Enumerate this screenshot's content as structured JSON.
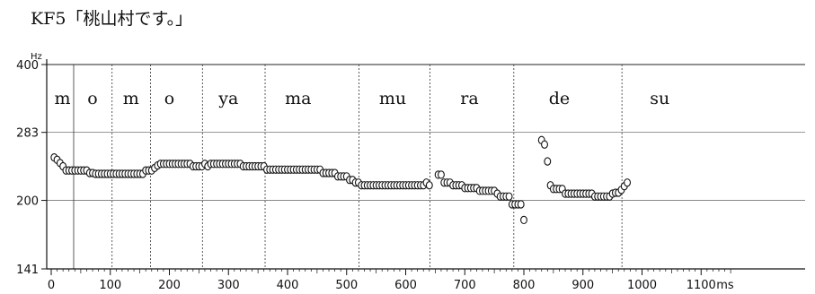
{
  "title": "KF5「桃山村です。」",
  "chart_data": {
    "type": "scatter",
    "title": "KF5「桃山村です。」",
    "x_unit": "ms",
    "y_unit": "Hz",
    "xlim": [
      0,
      1150
    ],
    "ylim": [
      141,
      400
    ],
    "y_scale": "log",
    "x_ticks": [
      0,
      100,
      200,
      300,
      400,
      500,
      600,
      700,
      800,
      900,
      1000,
      1100
    ],
    "y_ticks": [
      141,
      200,
      283,
      400
    ],
    "grid": "horizontal at y ticks",
    "segment_boundaries": [
      38,
      103,
      168,
      256,
      362,
      521,
      641,
      783,
      966
    ],
    "segments": [
      {
        "label": "m",
        "x": 19
      },
      {
        "label": "o",
        "x": 70
      },
      {
        "label": "m",
        "x": 135
      },
      {
        "label": "o",
        "x": 200
      },
      {
        "label": "ya",
        "x": 300
      },
      {
        "label": "ma",
        "x": 418
      },
      {
        "label": "mu",
        "x": 578
      },
      {
        "label": "ra",
        "x": 708
      },
      {
        "label": "de",
        "x": 860
      },
      {
        "label": "su",
        "x": 1030
      }
    ],
    "points": [
      [
        5,
        249
      ],
      [
        10,
        246
      ],
      [
        15,
        242
      ],
      [
        20,
        238
      ],
      [
        25,
        233
      ],
      [
        30,
        233
      ],
      [
        35,
        233
      ],
      [
        40,
        233
      ],
      [
        45,
        233
      ],
      [
        50,
        233
      ],
      [
        55,
        233
      ],
      [
        60,
        233
      ],
      [
        65,
        230
      ],
      [
        70,
        230
      ],
      [
        75,
        229
      ],
      [
        80,
        229
      ],
      [
        85,
        229
      ],
      [
        90,
        229
      ],
      [
        95,
        229
      ],
      [
        100,
        229
      ],
      [
        105,
        229
      ],
      [
        110,
        229
      ],
      [
        115,
        229
      ],
      [
        120,
        229
      ],
      [
        125,
        229
      ],
      [
        130,
        229
      ],
      [
        135,
        229
      ],
      [
        140,
        229
      ],
      [
        145,
        229
      ],
      [
        150,
        229
      ],
      [
        155,
        229
      ],
      [
        160,
        233
      ],
      [
        165,
        233
      ],
      [
        170,
        233
      ],
      [
        175,
        236
      ],
      [
        180,
        239
      ],
      [
        185,
        241
      ],
      [
        190,
        241
      ],
      [
        195,
        241
      ],
      [
        200,
        241
      ],
      [
        205,
        241
      ],
      [
        210,
        241
      ],
      [
        215,
        241
      ],
      [
        220,
        241
      ],
      [
        225,
        241
      ],
      [
        230,
        241
      ],
      [
        235,
        241
      ],
      [
        240,
        238
      ],
      [
        245,
        238
      ],
      [
        250,
        238
      ],
      [
        255,
        238
      ],
      [
        260,
        241
      ],
      [
        265,
        238
      ],
      [
        270,
        241
      ],
      [
        275,
        241
      ],
      [
        280,
        241
      ],
      [
        285,
        241
      ],
      [
        290,
        241
      ],
      [
        295,
        241
      ],
      [
        300,
        241
      ],
      [
        305,
        241
      ],
      [
        310,
        241
      ],
      [
        315,
        241
      ],
      [
        320,
        241
      ],
      [
        325,
        238
      ],
      [
        330,
        238
      ],
      [
        335,
        238
      ],
      [
        340,
        238
      ],
      [
        345,
        238
      ],
      [
        350,
        238
      ],
      [
        355,
        238
      ],
      [
        360,
        238
      ],
      [
        365,
        234
      ],
      [
        370,
        234
      ],
      [
        375,
        234
      ],
      [
        380,
        234
      ],
      [
        385,
        234
      ],
      [
        390,
        234
      ],
      [
        395,
        234
      ],
      [
        400,
        234
      ],
      [
        405,
        234
      ],
      [
        410,
        234
      ],
      [
        415,
        234
      ],
      [
        420,
        234
      ],
      [
        425,
        234
      ],
      [
        430,
        234
      ],
      [
        435,
        234
      ],
      [
        440,
        234
      ],
      [
        445,
        234
      ],
      [
        450,
        234
      ],
      [
        455,
        234
      ],
      [
        460,
        230
      ],
      [
        465,
        230
      ],
      [
        470,
        230
      ],
      [
        475,
        230
      ],
      [
        480,
        230
      ],
      [
        485,
        226
      ],
      [
        490,
        226
      ],
      [
        495,
        226
      ],
      [
        500,
        226
      ],
      [
        505,
        222
      ],
      [
        510,
        222
      ],
      [
        515,
        219
      ],
      [
        520,
        219
      ],
      [
        525,
        216
      ],
      [
        530,
        216
      ],
      [
        535,
        216
      ],
      [
        540,
        216
      ],
      [
        545,
        216
      ],
      [
        550,
        216
      ],
      [
        555,
        216
      ],
      [
        560,
        216
      ],
      [
        565,
        216
      ],
      [
        570,
        216
      ],
      [
        575,
        216
      ],
      [
        580,
        216
      ],
      [
        585,
        216
      ],
      [
        590,
        216
      ],
      [
        595,
        216
      ],
      [
        600,
        216
      ],
      [
        605,
        216
      ],
      [
        610,
        216
      ],
      [
        615,
        216
      ],
      [
        620,
        216
      ],
      [
        625,
        216
      ],
      [
        630,
        216
      ],
      [
        635,
        219
      ],
      [
        640,
        216
      ],
      [
        655,
        228
      ],
      [
        660,
        228
      ],
      [
        665,
        219
      ],
      [
        670,
        219
      ],
      [
        675,
        219
      ],
      [
        680,
        216
      ],
      [
        685,
        216
      ],
      [
        690,
        216
      ],
      [
        695,
        216
      ],
      [
        700,
        213
      ],
      [
        705,
        213
      ],
      [
        710,
        213
      ],
      [
        715,
        213
      ],
      [
        720,
        213
      ],
      [
        725,
        210
      ],
      [
        730,
        210
      ],
      [
        735,
        210
      ],
      [
        740,
        210
      ],
      [
        745,
        210
      ],
      [
        750,
        210
      ],
      [
        755,
        207
      ],
      [
        760,
        204
      ],
      [
        765,
        204
      ],
      [
        770,
        204
      ],
      [
        775,
        204
      ],
      [
        780,
        196
      ],
      [
        785,
        196
      ],
      [
        790,
        196
      ],
      [
        795,
        196
      ],
      [
        800,
        181
      ],
      [
        830,
        272
      ],
      [
        835,
        266
      ],
      [
        840,
        244
      ],
      [
        845,
        216
      ],
      [
        850,
        212
      ],
      [
        855,
        212
      ],
      [
        860,
        212
      ],
      [
        865,
        212
      ],
      [
        870,
        207
      ],
      [
        875,
        207
      ],
      [
        880,
        207
      ],
      [
        885,
        207
      ],
      [
        890,
        207
      ],
      [
        895,
        207
      ],
      [
        900,
        207
      ],
      [
        905,
        207
      ],
      [
        910,
        207
      ],
      [
        915,
        207
      ],
      [
        920,
        204
      ],
      [
        925,
        204
      ],
      [
        930,
        204
      ],
      [
        935,
        204
      ],
      [
        940,
        204
      ],
      [
        945,
        204
      ],
      [
        950,
        207
      ],
      [
        955,
        208
      ],
      [
        960,
        208
      ],
      [
        965,
        211
      ],
      [
        970,
        215
      ],
      [
        975,
        219
      ]
    ]
  }
}
